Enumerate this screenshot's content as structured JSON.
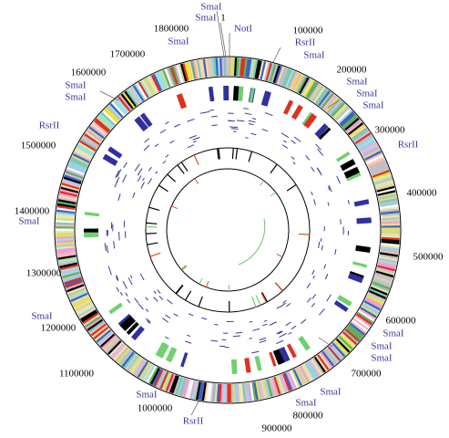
{
  "labels": [
    "SmaI",
    "SmaI",
    "1",
    "NotI",
    "1800000",
    "SmaI",
    "100000",
    "RsrII",
    "SmaI",
    "1700000",
    "200000",
    "SmaI",
    "SmaI",
    "SmaI",
    "300000",
    "RsrII",
    "1600000",
    "SmaI",
    "SmaI",
    "RsrII",
    "1500000",
    "400000",
    "1400000",
    "SmaI",
    "500000",
    "1300000",
    "SmaI",
    "1200000",
    "600000",
    "SmaI",
    "SmaI",
    "SmaI",
    "700000",
    "1100000",
    "SmaI",
    "SmaI",
    "800000",
    "SmaI",
    "1000000",
    "RsrII",
    "900000"
  ]
}
